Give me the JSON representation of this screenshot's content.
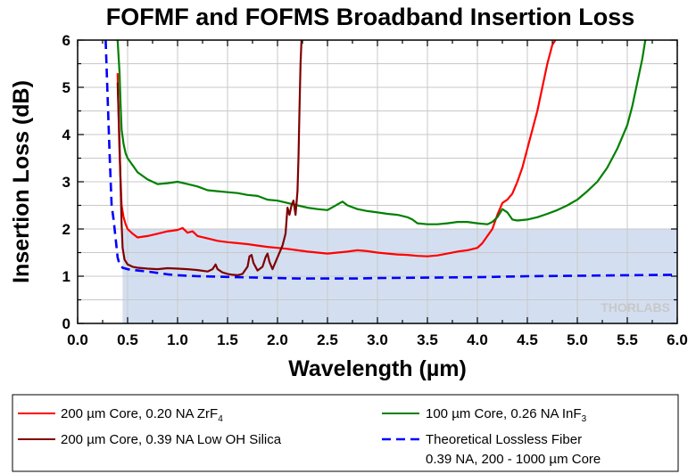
{
  "chart_data": {
    "type": "line",
    "title": "FOFMF and FOFMS Broadband Insertion Loss",
    "xlabel": "Wavelength (µm)",
    "ylabel": "Insertion Loss (dB)",
    "xlim": [
      0,
      6
    ],
    "ylim": [
      0,
      6
    ],
    "xticks": [
      "0.0",
      "0.5",
      "1.0",
      "1.5",
      "2.0",
      "2.5",
      "3.0",
      "3.5",
      "4.0",
      "4.5",
      "5.0",
      "5.5",
      "6.0"
    ],
    "yticks": [
      "0",
      "1",
      "2",
      "3",
      "4",
      "5",
      "6"
    ],
    "grid": true,
    "shaded_region": {
      "x": [
        0.45,
        6.0
      ],
      "y": [
        0,
        2.0
      ],
      "color": "#d3dff0"
    },
    "watermark": "THORLABS",
    "series": [
      {
        "name": "200 µm Core, 0.20 NA ZrF₄",
        "color": "#ff0000",
        "style": "solid",
        "x": [
          0.4,
          0.41,
          0.42,
          0.43,
          0.44,
          0.46,
          0.48,
          0.5,
          0.55,
          0.6,
          0.7,
          0.8,
          0.9,
          1.0,
          1.05,
          1.1,
          1.15,
          1.2,
          1.3,
          1.4,
          1.5,
          1.6,
          1.7,
          1.8,
          1.9,
          2.0,
          2.1,
          2.2,
          2.3,
          2.4,
          2.5,
          2.6,
          2.7,
          2.8,
          2.9,
          3.0,
          3.1,
          3.2,
          3.3,
          3.4,
          3.5,
          3.6,
          3.7,
          3.8,
          3.9,
          4.0,
          4.05,
          4.1,
          4.15,
          4.2,
          4.25,
          4.3,
          4.35,
          4.4,
          4.45,
          4.5,
          4.55,
          4.6,
          4.65,
          4.7,
          4.75,
          4.78
        ],
        "y": [
          5.3,
          4.4,
          3.6,
          3.0,
          2.5,
          2.25,
          2.1,
          2.0,
          1.9,
          1.82,
          1.85,
          1.9,
          1.95,
          1.98,
          2.02,
          1.92,
          1.95,
          1.85,
          1.8,
          1.75,
          1.72,
          1.7,
          1.68,
          1.65,
          1.62,
          1.6,
          1.58,
          1.55,
          1.52,
          1.5,
          1.48,
          1.5,
          1.52,
          1.55,
          1.53,
          1.5,
          1.48,
          1.46,
          1.45,
          1.43,
          1.42,
          1.44,
          1.48,
          1.52,
          1.55,
          1.6,
          1.7,
          1.85,
          2.0,
          2.3,
          2.55,
          2.62,
          2.75,
          3.0,
          3.3,
          3.7,
          4.1,
          4.5,
          5.0,
          5.5,
          5.9,
          6.0
        ]
      },
      {
        "name": "100 µm Core, 0.26 NA InF₃",
        "color": "#008000",
        "style": "solid",
        "x": [
          0.4,
          0.42,
          0.43,
          0.44,
          0.46,
          0.48,
          0.5,
          0.55,
          0.6,
          0.7,
          0.8,
          0.9,
          1.0,
          1.1,
          1.2,
          1.3,
          1.4,
          1.5,
          1.6,
          1.7,
          1.8,
          1.9,
          2.0,
          2.1,
          2.2,
          2.3,
          2.4,
          2.5,
          2.6,
          2.65,
          2.7,
          2.8,
          2.9,
          3.0,
          3.1,
          3.2,
          3.3,
          3.35,
          3.4,
          3.5,
          3.6,
          3.7,
          3.8,
          3.9,
          4.0,
          4.1,
          4.15,
          4.2,
          4.25,
          4.3,
          4.35,
          4.4,
          4.5,
          4.6,
          4.7,
          4.8,
          4.9,
          5.0,
          5.1,
          5.2,
          5.3,
          5.4,
          5.5,
          5.55,
          5.6,
          5.65,
          5.68
        ],
        "y": [
          6.0,
          5.3,
          4.6,
          4.1,
          3.8,
          3.6,
          3.5,
          3.35,
          3.2,
          3.05,
          2.95,
          2.97,
          3.0,
          2.95,
          2.9,
          2.82,
          2.8,
          2.78,
          2.76,
          2.72,
          2.7,
          2.62,
          2.6,
          2.55,
          2.5,
          2.45,
          2.42,
          2.4,
          2.52,
          2.58,
          2.5,
          2.42,
          2.38,
          2.35,
          2.32,
          2.3,
          2.25,
          2.2,
          2.12,
          2.1,
          2.1,
          2.12,
          2.15,
          2.15,
          2.12,
          2.1,
          2.15,
          2.25,
          2.42,
          2.35,
          2.2,
          2.18,
          2.2,
          2.25,
          2.32,
          2.4,
          2.5,
          2.62,
          2.8,
          3.0,
          3.3,
          3.7,
          4.2,
          4.6,
          5.1,
          5.6,
          6.0
        ]
      },
      {
        "name": "200 µm Core, 0.39 NA Low OH Silica",
        "color": "#800000",
        "style": "solid",
        "x": [
          0.4,
          0.42,
          0.43,
          0.44,
          0.45,
          0.47,
          0.5,
          0.55,
          0.6,
          0.7,
          0.8,
          0.9,
          1.0,
          1.1,
          1.2,
          1.3,
          1.35,
          1.38,
          1.4,
          1.45,
          1.5,
          1.55,
          1.6,
          1.65,
          1.7,
          1.72,
          1.74,
          1.76,
          1.8,
          1.85,
          1.88,
          1.9,
          1.92,
          1.95,
          2.0,
          2.05,
          2.08,
          2.1,
          2.12,
          2.14,
          2.16,
          2.18,
          2.2,
          2.21,
          2.22,
          2.23,
          2.24
        ],
        "y": [
          5.1,
          3.8,
          2.9,
          2.1,
          1.6,
          1.35,
          1.25,
          1.2,
          1.18,
          1.16,
          1.15,
          1.17,
          1.16,
          1.15,
          1.13,
          1.1,
          1.15,
          1.25,
          1.15,
          1.08,
          1.05,
          1.03,
          1.02,
          1.05,
          1.2,
          1.42,
          1.45,
          1.28,
          1.12,
          1.2,
          1.4,
          1.48,
          1.3,
          1.15,
          1.4,
          1.65,
          1.9,
          2.45,
          2.3,
          2.5,
          2.6,
          2.3,
          2.8,
          3.5,
          4.5,
          5.5,
          6.0
        ]
      },
      {
        "name": "Theoretical Lossless Fiber 0.39 NA, 200 - 1000 µm Core",
        "color": "#0000ff",
        "style": "dashed",
        "x": [
          0.28,
          0.3,
          0.32,
          0.34,
          0.36,
          0.38,
          0.4,
          0.42,
          0.45,
          0.5,
          0.55,
          0.6,
          0.7,
          0.8,
          0.9,
          1.0,
          1.2,
          1.4,
          1.6,
          1.8,
          2.0,
          2.2,
          2.5,
          2.8,
          3.0,
          3.5,
          4.0,
          4.5,
          5.0,
          5.5,
          6.0
        ],
        "y": [
          6.0,
          4.8,
          3.6,
          2.5,
          2.2,
          1.8,
          1.4,
          1.25,
          1.18,
          1.15,
          1.13,
          1.12,
          1.1,
          1.07,
          1.04,
          1.02,
          1.0,
          0.99,
          0.98,
          0.97,
          0.96,
          0.95,
          0.95,
          0.95,
          0.96,
          0.97,
          0.98,
          1.0,
          1.01,
          1.02,
          1.03
        ]
      }
    ],
    "legend": {
      "position": "bottom",
      "entries": [
        {
          "line1": "200 µm Core, 0.20 NA ZrF",
          "sub": "4",
          "line2": "",
          "color": "#ff0000",
          "style": "solid"
        },
        {
          "line1": "100 µm Core, 0.26 NA InF",
          "sub": "3",
          "line2": "",
          "color": "#008000",
          "style": "solid"
        },
        {
          "line1": "200 µm Core, 0.39 NA Low OH Silica",
          "sub": "",
          "line2": "",
          "color": "#800000",
          "style": "solid"
        },
        {
          "line1": "Theoretical Lossless Fiber",
          "sub": "",
          "line2": "0.39 NA, 200 - 1000 µm Core",
          "color": "#0000ff",
          "style": "dashed"
        }
      ]
    }
  }
}
